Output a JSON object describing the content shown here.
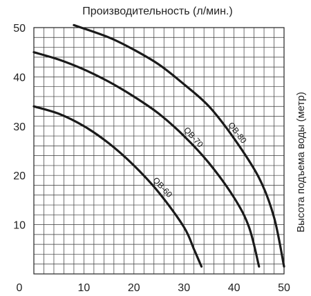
{
  "chart_data": {
    "type": "line",
    "title": "Производительность (л/мин.)",
    "ylabel": "Высота подъема воды (метр)",
    "xlabel": "",
    "xlim": [
      0,
      50
    ],
    "ylim": [
      0,
      50
    ],
    "x_ticks": [
      "0",
      "10",
      "20",
      "30",
      "40",
      "50"
    ],
    "y_ticks": [
      "10",
      "20",
      "30",
      "40",
      "50"
    ],
    "grid": true,
    "colors": {
      "curve": "#1a1a1a",
      "grid": "#333333",
      "text": "#222222"
    },
    "series": [
      {
        "name": "QB-60",
        "x": [
          0,
          5,
          10,
          15,
          20,
          25,
          30,
          32,
          33.5
        ],
        "y": [
          34,
          32.5,
          30,
          26.5,
          22,
          16.5,
          9.5,
          5,
          1.5
        ]
      },
      {
        "name": "QB-70",
        "x": [
          0,
          5,
          10,
          15,
          20,
          25,
          30,
          35,
          40,
          43,
          45
        ],
        "y": [
          45,
          43.5,
          41.5,
          39,
          36,
          32.5,
          28,
          22.5,
          15.5,
          9.5,
          1.5
        ]
      },
      {
        "name": "QB-80",
        "x": [
          8,
          15,
          20,
          25,
          30,
          35,
          40,
          45,
          48,
          50
        ],
        "y": [
          50.5,
          48,
          45.5,
          42.5,
          38.5,
          34,
          27.5,
          19.5,
          11.5,
          1.5
        ]
      }
    ]
  }
}
